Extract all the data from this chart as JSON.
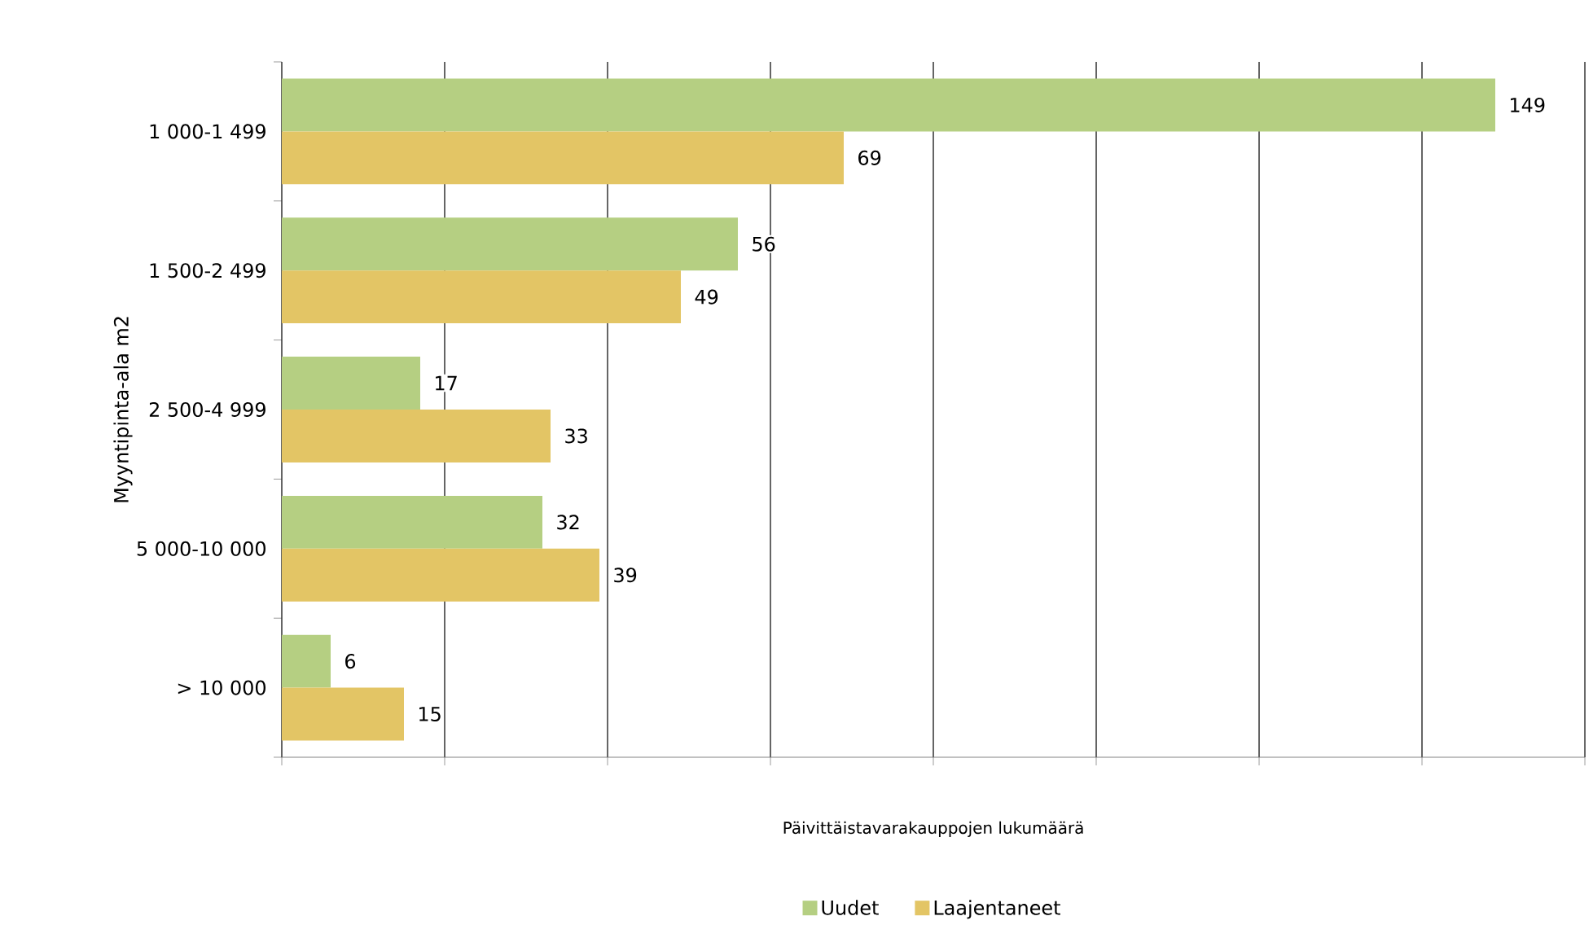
{
  "chart_data": {
    "type": "bar",
    "orientation": "horizontal",
    "xlabel": "Päivittäistavarakauppojen lukumäärä",
    "ylabel": "Myyntipinta-ala m2",
    "categories": [
      "1 000-1 499",
      "1 500-2 499",
      "2 500-4 999",
      "5 000-10 000",
      "> 10 000"
    ],
    "series": [
      {
        "name": "Uudet",
        "color": "#b5cf82",
        "values": [
          149,
          56,
          17,
          32,
          6
        ]
      },
      {
        "name": "Laajentaneet",
        "color": "#e3c565",
        "values": [
          69,
          49,
          33,
          39,
          15
        ]
      }
    ],
    "xlim": [
      0,
      160
    ],
    "xticks": [
      {
        "value": 0,
        "label": null
      },
      {
        "value": 20,
        "label": null
      },
      {
        "value": 40,
        "label": null
      },
      {
        "value": 60,
        "label": null
      },
      {
        "value": 80,
        "label": null
      },
      {
        "value": 100,
        "label": null
      },
      {
        "value": 120,
        "label": null
      },
      {
        "value": 140,
        "label": null
      },
      {
        "value": 160,
        "label": null
      }
    ],
    "tick_labels": "y",
    "grid": "x",
    "legend": "bottom",
    "data_labels": true
  }
}
